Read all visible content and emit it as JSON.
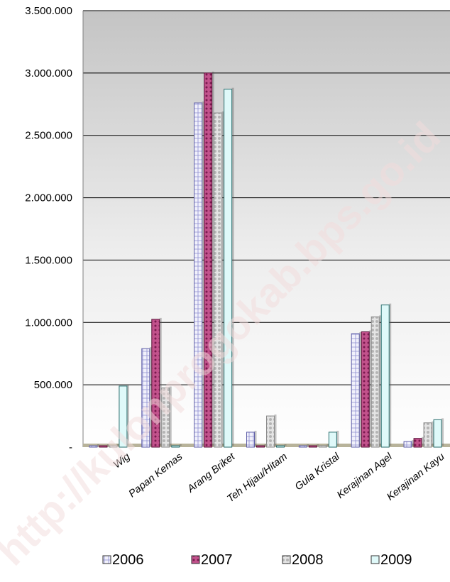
{
  "chart_data": {
    "type": "bar",
    "categories": [
      "Wig",
      "Papan Kemas",
      "Arang Briket",
      "Teh Hijau/Hitam",
      "Gula Kristal",
      "Kerajinan Agel",
      "Kerajinan Kayu"
    ],
    "series": [
      {
        "name": "2006",
        "values": [
          5000,
          790000,
          2760000,
          120000,
          5000,
          910000,
          45000
        ],
        "color": "#ececf8"
      },
      {
        "name": "2007",
        "values": [
          5000,
          1025000,
          3000000,
          5000,
          5000,
          925000,
          70000
        ],
        "color": "#c0508a"
      },
      {
        "name": "2008",
        "values": [
          5000,
          475000,
          2680000,
          250000,
          5000,
          1045000,
          195000
        ],
        "color": "#d9d9d9"
      },
      {
        "name": "2009",
        "values": [
          490000,
          5000,
          2870000,
          5000,
          120000,
          1140000,
          220000
        ],
        "color": "#dcf8f8"
      }
    ],
    "yticks": [
      "-",
      "500.000",
      "1.000.000",
      "1.500.000",
      "2.000.000",
      "2.500.000",
      "3.000.000",
      "3.500.000"
    ],
    "ylim": [
      0,
      3500000
    ],
    "grid": true,
    "legend_position": "bottom",
    "watermark": "http://kulonprogokab.bps.go.id"
  }
}
